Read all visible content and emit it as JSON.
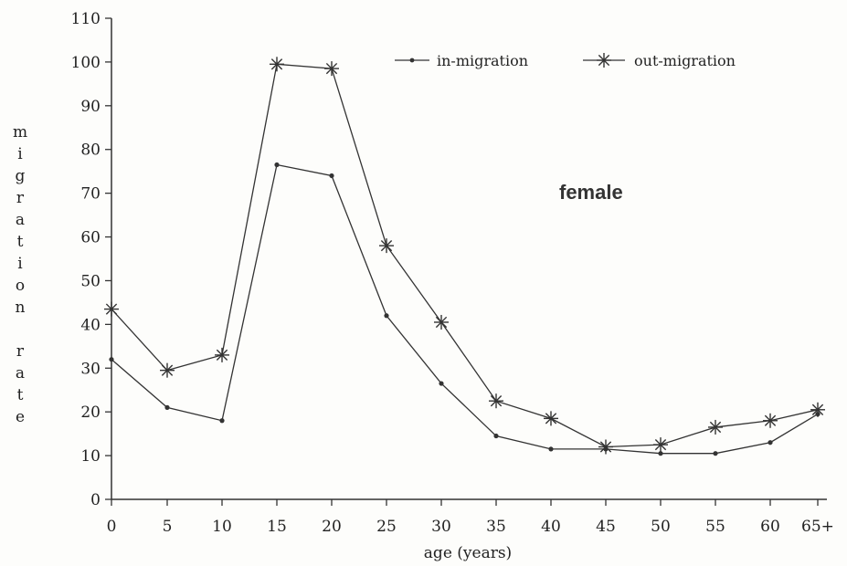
{
  "chart_data": {
    "type": "line",
    "title": "",
    "annotation": "female",
    "xlabel": "age (years)",
    "ylabel": "migration rate",
    "categories": [
      "0",
      "5",
      "10",
      "15",
      "20",
      "25",
      "30",
      "35",
      "40",
      "45",
      "50",
      "55",
      "60",
      "65+"
    ],
    "ylim": [
      0,
      110
    ],
    "yticks": [
      0,
      10,
      20,
      30,
      40,
      50,
      60,
      70,
      80,
      90,
      100,
      110
    ],
    "grid": false,
    "legend_position": "top-right",
    "series": [
      {
        "name": "in-migration",
        "marker": "dot",
        "values": [
          32,
          21,
          18,
          76.5,
          74,
          42,
          26.5,
          14.5,
          11.5,
          11.5,
          10.5,
          10.5,
          13,
          19.5
        ]
      },
      {
        "name": "out-migration",
        "marker": "asterisk",
        "values": [
          43.5,
          29.5,
          33,
          99.5,
          98.5,
          58,
          40.5,
          22.5,
          18.5,
          12,
          12.5,
          16.5,
          18,
          20.5
        ]
      }
    ]
  },
  "colors": {
    "line": "#333333",
    "background": "#fdfdfb"
  }
}
